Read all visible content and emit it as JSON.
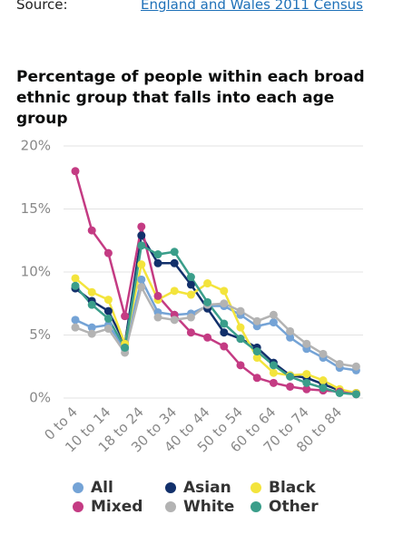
{
  "source": {
    "label": "Source:",
    "link": "England and Wales 2011 Census"
  },
  "chart_data": {
    "type": "line",
    "title": "Percentage of people within each broad ethnic group that falls into each age group",
    "categories": [
      "0 to 4",
      null,
      "10 to 14",
      null,
      "18 to 24",
      null,
      "30 to 34",
      null,
      "40 to 44",
      null,
      "50 to 54",
      null,
      "60 to 64",
      null,
      "70 to 74",
      null,
      "80 to 84",
      null
    ],
    "ylim": [
      0,
      20
    ],
    "yticks": [
      {
        "value": 0,
        "label": "0%"
      },
      {
        "value": 5,
        "label": "5%"
      },
      {
        "value": 10,
        "label": "10%"
      },
      {
        "value": 15,
        "label": "15%"
      },
      {
        "value": 20,
        "label": "20%"
      }
    ],
    "grid": true,
    "series": [
      {
        "name": "All",
        "color": "#74a3d6",
        "values": [
          6.2,
          5.6,
          5.8,
          3.9,
          9.4,
          6.8,
          6.6,
          6.7,
          7.3,
          7.3,
          6.6,
          5.7,
          6.0,
          4.8,
          3.9,
          3.2,
          2.4,
          2.2
        ]
      },
      {
        "name": "Asian",
        "color": "#12306b",
        "values": [
          8.7,
          7.7,
          6.9,
          4.3,
          12.9,
          10.7,
          10.7,
          9.0,
          7.1,
          5.2,
          4.7,
          4.0,
          2.8,
          1.8,
          1.6,
          1.1,
          0.6,
          0.4
        ]
      },
      {
        "name": "Black",
        "color": "#f3e43c",
        "values": [
          9.5,
          8.4,
          7.8,
          4.3,
          10.6,
          7.8,
          8.5,
          8.2,
          9.1,
          8.5,
          5.6,
          3.2,
          2.0,
          1.8,
          1.9,
          1.4,
          0.7,
          0.4
        ]
      },
      {
        "name": "Mixed",
        "color": "#c43b83",
        "values": [
          18.0,
          13.3,
          11.5,
          6.5,
          13.6,
          8.1,
          6.6,
          5.2,
          4.8,
          4.1,
          2.6,
          1.6,
          1.2,
          0.9,
          0.7,
          0.6,
          0.5,
          0.3
        ]
      },
      {
        "name": "White",
        "color": "#b3b3b3",
        "values": [
          5.6,
          5.1,
          5.5,
          3.6,
          8.8,
          6.4,
          6.2,
          6.4,
          7.4,
          7.5,
          6.9,
          6.1,
          6.6,
          5.3,
          4.3,
          3.5,
          2.7,
          2.5
        ]
      },
      {
        "name": "Other",
        "color": "#3a9e8a",
        "values": [
          8.9,
          7.4,
          6.3,
          4.0,
          12.1,
          11.4,
          11.6,
          9.6,
          7.6,
          5.9,
          4.7,
          3.7,
          2.6,
          1.7,
          1.2,
          0.8,
          0.4,
          0.3
        ]
      }
    ]
  }
}
